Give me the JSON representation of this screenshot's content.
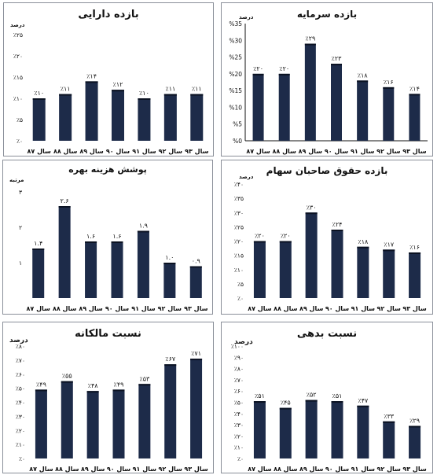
{
  "chart_data": [
    {
      "id": "p1",
      "type": "bar",
      "title": "بازده دارایی",
      "ylabel": "درصد",
      "categories": [
        "سال ۸۷",
        "سال ۸۸",
        "سال ۸۹",
        "سال ۹۰",
        "سال ۹۱",
        "سال ۹۲",
        "سال ۹۳"
      ],
      "values": [
        10,
        11,
        14,
        12,
        10,
        11,
        11
      ],
      "data_labels": [
        "٪۱۰",
        "٪۱۱",
        "٪۱۴",
        "٪۱۲",
        "٪۱۰",
        "٪۱۱",
        "٪۱۱"
      ],
      "ylim": [
        0,
        25
      ],
      "yticks": [
        0,
        5,
        10,
        15,
        20,
        25
      ],
      "ytick_labels": [
        "٪۰",
        "٪۵",
        "٪۱۰",
        "٪۱۵",
        "٪۲۰",
        "٪۲۵"
      ],
      "grid": false
    },
    {
      "id": "p2",
      "type": "bar",
      "title": "بازده سرمایه",
      "ylabel": "درصد",
      "categories": [
        "سال ۸۷",
        "سال ۸۸",
        "سال ۸۹",
        "سال ۹۰",
        "سال ۹۱",
        "سال ۹۲",
        "سال ۹۳"
      ],
      "values": [
        20,
        20,
        29,
        23,
        18,
        16,
        14
      ],
      "data_labels": [
        "٪۲۰",
        "٪۲۰",
        "٪۲۹",
        "٪۲۳",
        "٪۱۸",
        "٪۱۶",
        "٪۱۴"
      ],
      "ylim": [
        0,
        35
      ],
      "yticks": [
        0,
        5,
        10,
        15,
        20,
        25,
        30,
        35
      ],
      "ytick_labels": [
        "%0",
        "%5",
        "%10",
        "%15",
        "%20",
        "%25",
        "%30",
        "%35"
      ],
      "grid": false
    },
    {
      "id": "p3",
      "type": "bar",
      "title": "پوشش هزینه بهره",
      "ylabel": "مرتبه",
      "categories": [
        "سال ۸۷",
        "سال ۸۸",
        "سال ۸۹",
        "سال ۹۰",
        "سال ۹۱",
        "سال ۹۲",
        "سال ۹۳"
      ],
      "values": [
        1.4,
        2.6,
        1.6,
        1.6,
        1.9,
        1.0,
        0.9
      ],
      "data_labels": [
        "۱.۴",
        "۲.۶",
        "۱.۶",
        "۱.۶",
        "۱.۹",
        "۱.۰",
        "۰.۹"
      ],
      "ylim": [
        0,
        3
      ],
      "yticks": [
        1,
        2,
        3
      ],
      "ytick_labels": [
        "۱",
        "۲",
        "۳"
      ],
      "grid": false
    },
    {
      "id": "p4",
      "type": "bar",
      "title": "بازده حقوق صاحبان سهام",
      "ylabel": "درصد",
      "categories": [
        "سال ۸۷",
        "سال ۸۸",
        "سال ۸۹",
        "سال ۹۰",
        "سال ۹۱",
        "سال ۹۲",
        "سال ۹۳"
      ],
      "values": [
        20,
        20,
        30,
        24,
        18,
        17,
        16
      ],
      "data_labels": [
        "٪۲۰",
        "٪۲۰",
        "٪۳۰",
        "٪۲۴",
        "٪۱۸",
        "٪۱۷",
        "٪۱۶"
      ],
      "ylim": [
        0,
        40
      ],
      "yticks": [
        0,
        5,
        10,
        15,
        20,
        25,
        30,
        35,
        40
      ],
      "ytick_labels": [
        "٪۰",
        "٪۵",
        "٪۱۰",
        "٪۱۵",
        "٪۲۰",
        "٪۲۵",
        "٪۳۰",
        "٪۳۵",
        "٪۴۰"
      ],
      "grid": false
    },
    {
      "id": "p5",
      "type": "bar",
      "title": "نسبت مالکانه",
      "ylabel": "درصد",
      "categories": [
        "سال ۸۷",
        "سال ۸۸",
        "سال ۸۹",
        "سال ۹۰",
        "سال ۹۱",
        "سال ۹۲",
        "سال ۹۳"
      ],
      "values": [
        49,
        55,
        48,
        49,
        53,
        67,
        71
      ],
      "data_labels": [
        "٪۴۹",
        "٪۵۵",
        "٪۴۸",
        "٪۴۹",
        "٪۵۳",
        "٪۶۷",
        "٪۷۱"
      ],
      "ylim": [
        0,
        80
      ],
      "yticks": [
        0,
        10,
        20,
        30,
        40,
        50,
        60,
        70,
        80
      ],
      "ytick_labels": [
        "٪۰",
        "٪۱۰",
        "٪۲۰",
        "٪۳۰",
        "٪۴۰",
        "٪۵۰",
        "٪۶۰",
        "٪۷۰",
        "٪۸۰"
      ],
      "grid": false
    },
    {
      "id": "p6",
      "type": "bar",
      "title": "نسبت بدهی",
      "ylabel": "درصد",
      "categories": [
        "سال ۸۷",
        "سال ۸۸",
        "سال ۸۹",
        "سال ۹۰",
        "سال ۹۱",
        "سال ۹۲",
        "سال ۹۳"
      ],
      "values": [
        51,
        45,
        52,
        51,
        47,
        33,
        29
      ],
      "data_labels": [
        "٪۵۱",
        "٪۴۵",
        "٪۵۲",
        "٪۵۱",
        "٪۴۷",
        "٪۳۳",
        "٪۲۹"
      ],
      "ylim": [
        0,
        100
      ],
      "yticks": [
        0,
        10,
        20,
        30,
        40,
        50,
        60,
        70,
        80,
        90,
        100
      ],
      "ytick_labels": [
        "٪۰",
        "٪۱۰",
        "٪۲۰",
        "٪۳۰",
        "٪۴۰",
        "٪۵۰",
        "٪۶۰",
        "٪۷۰",
        "٪۸۰",
        "٪۹۰",
        "٪۱۰۰"
      ],
      "grid": false
    }
  ]
}
